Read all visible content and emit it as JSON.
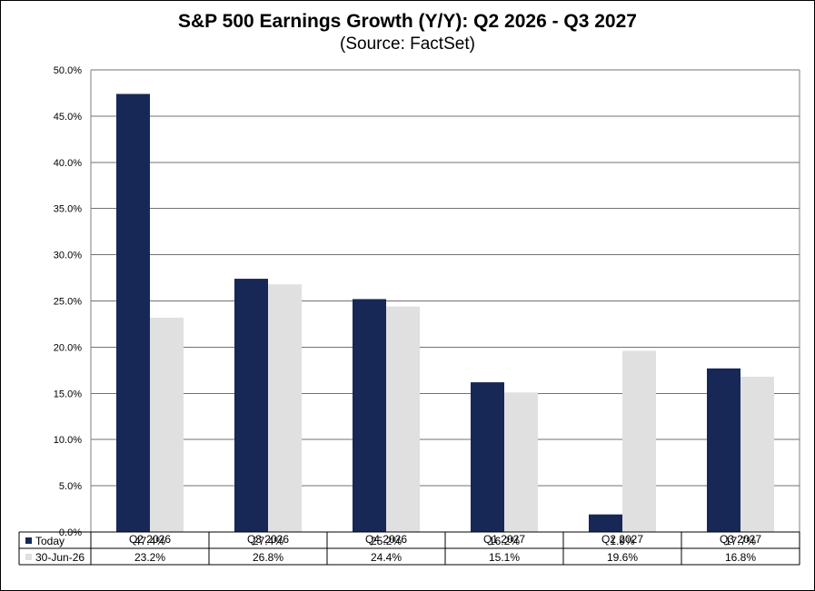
{
  "colors": {
    "today": "#172856",
    "prior": "#e0e0e0",
    "grid": "#000000"
  },
  "chart_data": {
    "type": "bar",
    "title": "S&P 500 Earnings Growth (Y/Y): Q2 2026 - Q3 2027",
    "subtitle": "(Source: FactSet)",
    "categories": [
      "Q2 2026",
      "Q3 2026",
      "Q4 2026",
      "Q1 2027",
      "Q2 2027",
      "Q3 2027"
    ],
    "series": [
      {
        "name": "Today",
        "values": [
          47.4,
          27.4,
          25.2,
          16.2,
          1.9,
          17.7
        ],
        "labels": [
          "47.4%",
          "27.4%",
          "25.2%",
          "16.2%",
          "1.9%",
          "17.7%"
        ]
      },
      {
        "name": "30-Jun-26",
        "values": [
          23.2,
          26.8,
          24.4,
          15.1,
          19.6,
          16.8
        ],
        "labels": [
          "23.2%",
          "26.8%",
          "24.4%",
          "15.1%",
          "19.6%",
          "16.8%"
        ]
      }
    ],
    "ylim": [
      0,
      50
    ],
    "yticks": [
      "0.0%",
      "5.0%",
      "10.0%",
      "15.0%",
      "20.0%",
      "25.0%",
      "30.0%",
      "35.0%",
      "40.0%",
      "45.0%",
      "50.0%"
    ],
    "grid": true,
    "legend": "data-table"
  }
}
